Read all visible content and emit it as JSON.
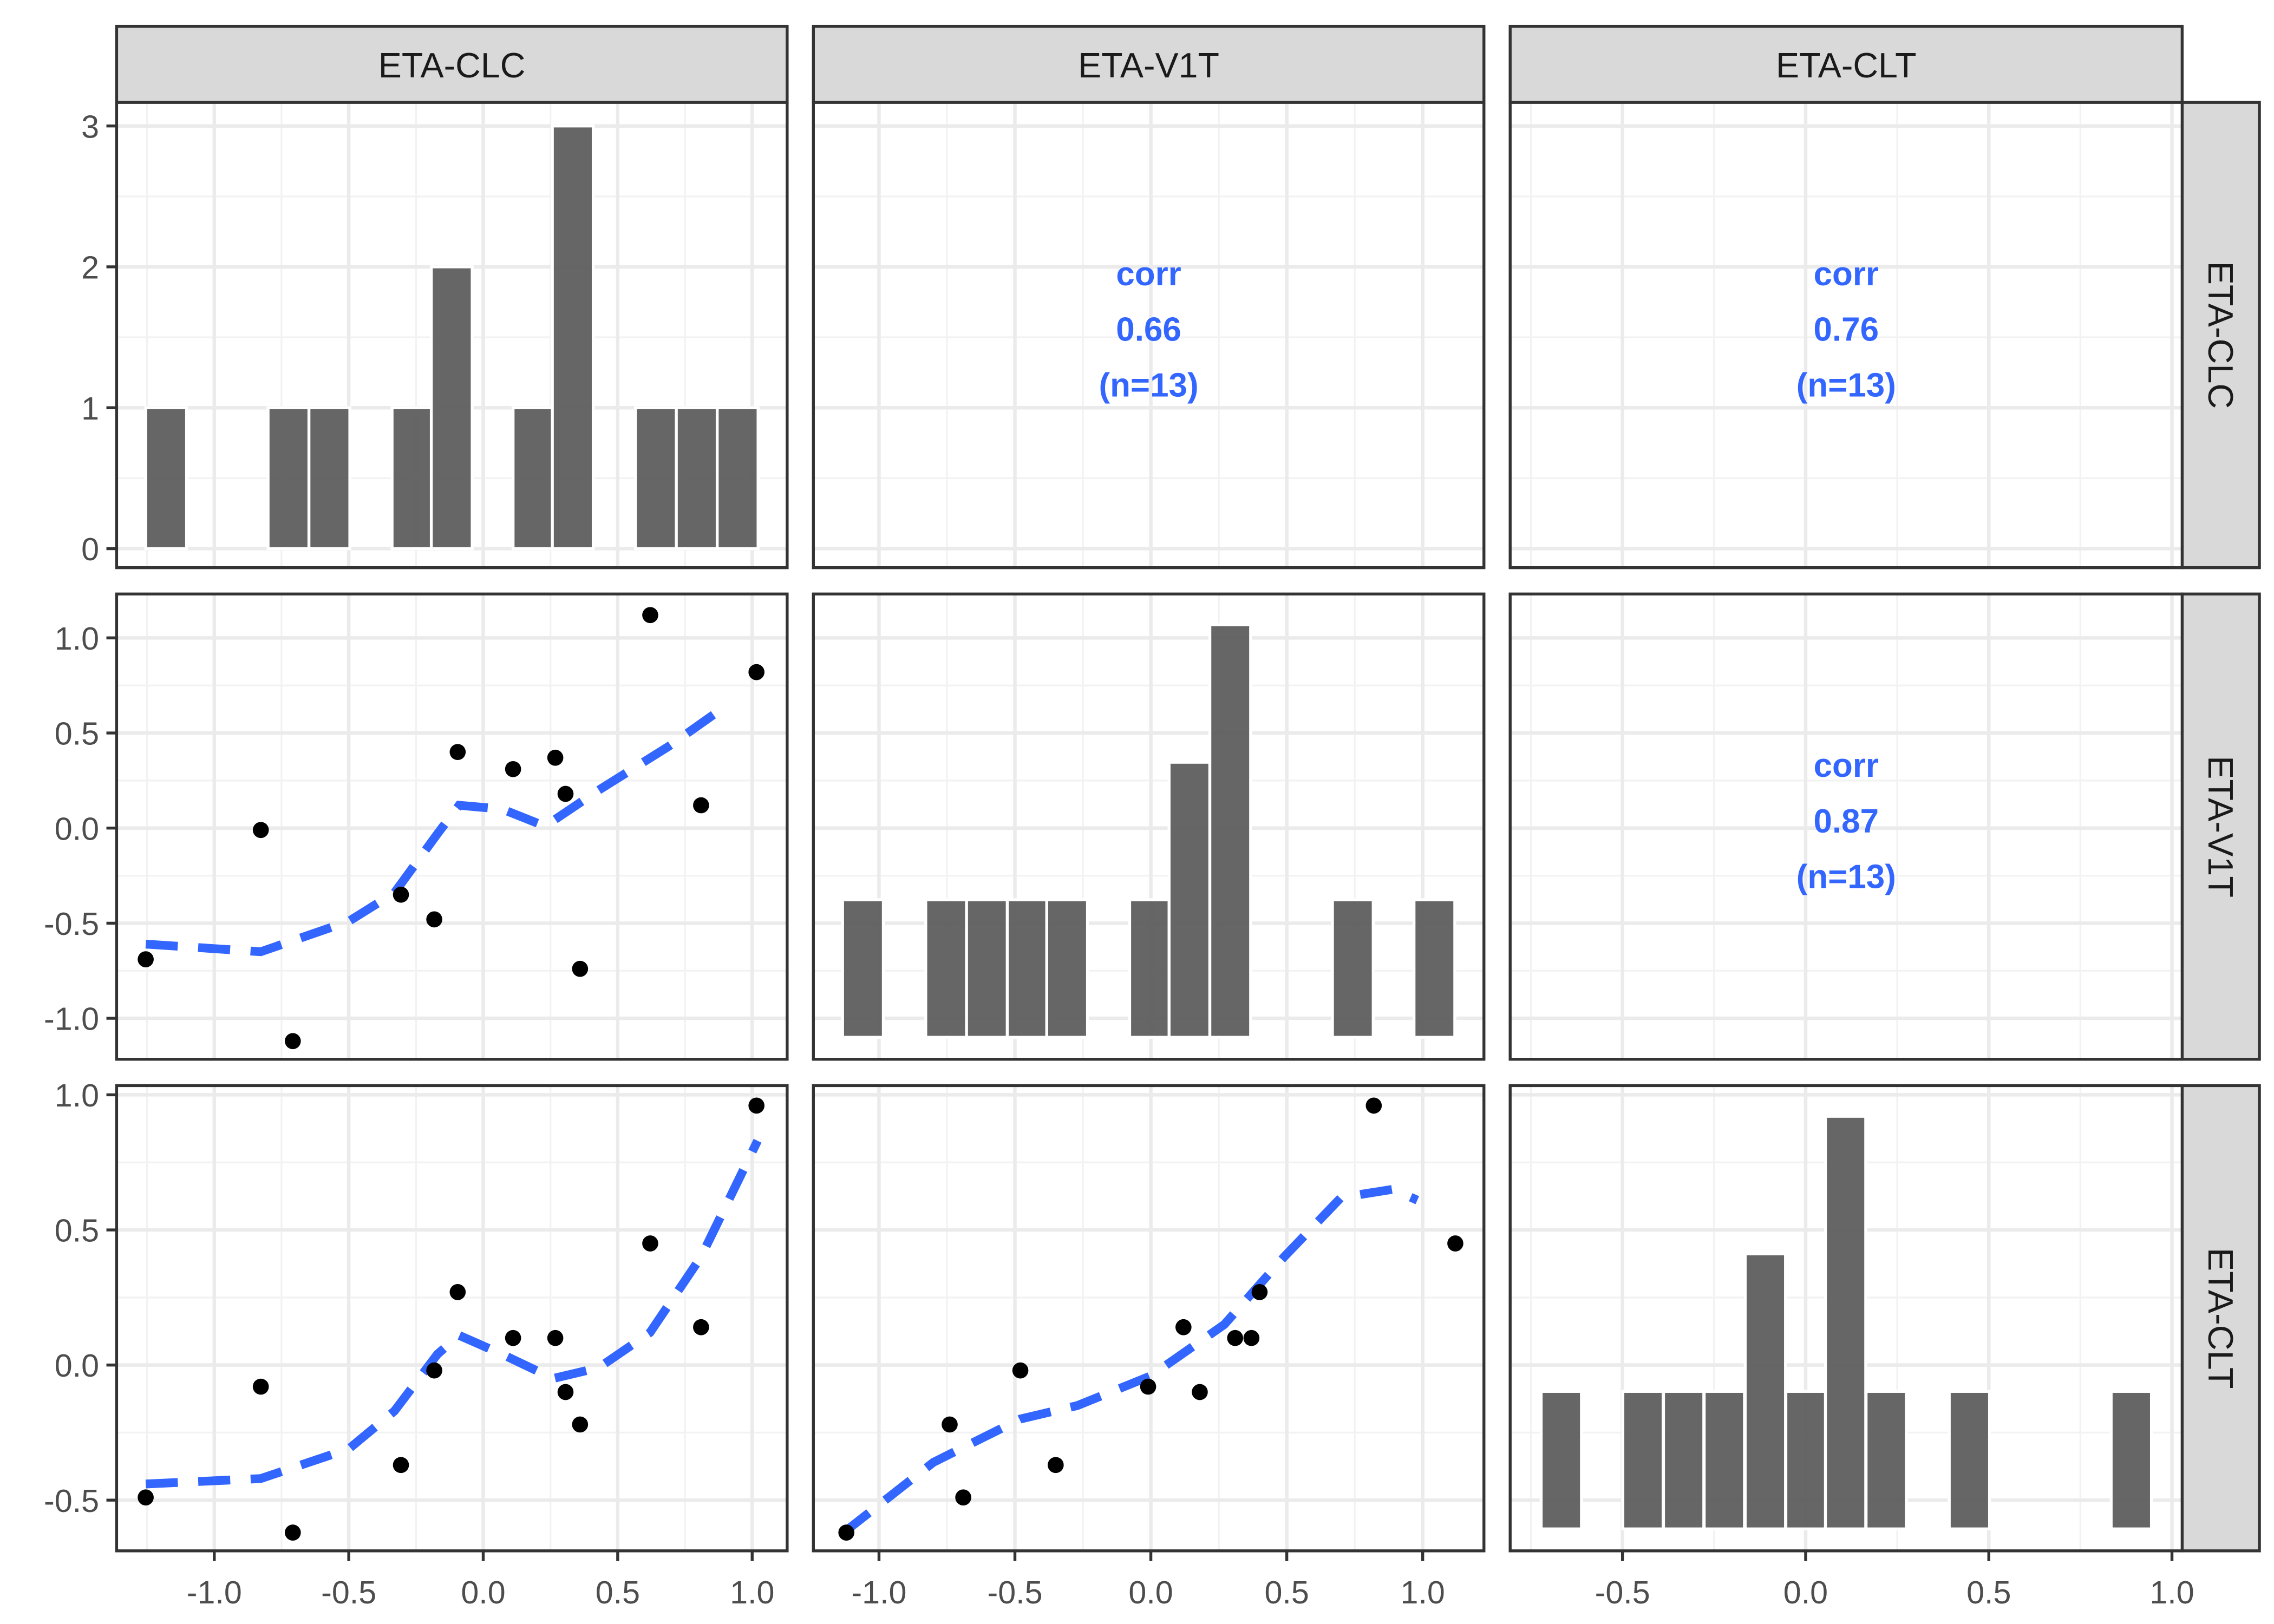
{
  "chart_data": {
    "type": "scatter-matrix",
    "variables": [
      "ETA-CLC",
      "ETA-V1T",
      "ETA-CLT"
    ],
    "x_ticks": [
      [
        "-1.0",
        "-0.5",
        "0.0",
        "0.5",
        "1.0"
      ],
      [
        "-1.0",
        "-0.5",
        "0.0",
        "0.5",
        "1.0"
      ],
      [
        "-0.5",
        "0.0",
        "0.5",
        "1.0"
      ]
    ],
    "y_ticks": [
      [
        "0",
        "1",
        "2",
        "3"
      ],
      [
        "-1.0",
        "-0.5",
        "0.0",
        "0.5",
        "1.0"
      ],
      [
        "-0.5",
        "0.0",
        "0.5",
        "1.0"
      ]
    ],
    "data": {
      "ETA-CLC": [
        -1.255,
        -0.827,
        -0.708,
        -0.306,
        -0.182,
        -0.095,
        0.111,
        0.268,
        0.306,
        0.36,
        0.621,
        0.81,
        1.016
      ],
      "ETA-V1T": [
        -0.69,
        -0.01,
        -1.12,
        -0.35,
        -0.48,
        0.4,
        0.31,
        0.37,
        0.18,
        -0.74,
        1.12,
        0.12,
        0.82
      ],
      "ETA-CLT": [
        -0.49,
        -0.08,
        -0.62,
        -0.37,
        -0.02,
        0.27,
        0.1,
        0.1,
        -0.1,
        -0.22,
        0.45,
        0.14,
        0.96
      ]
    },
    "histograms": [
      {
        "variable": "ETA-CLC",
        "bin_width": 0.152,
        "centers": [
          -1.179,
          -0.724,
          -0.572,
          -0.263,
          -0.117,
          0.187,
          0.333,
          0.642,
          0.794,
          0.946
        ],
        "counts": [
          1,
          1,
          1,
          1,
          2,
          1,
          3,
          1,
          1,
          1
        ]
      },
      {
        "variable": "ETA-V1T",
        "bin_width": 0.15,
        "centers": [
          -1.059,
          -0.753,
          -0.603,
          -0.453,
          -0.308,
          -0.003,
          0.142,
          0.292,
          0.743,
          1.043
        ],
        "counts": [
          1,
          1,
          1,
          1,
          1,
          1,
          2,
          3,
          1,
          1
        ]
      },
      {
        "variable": "ETA-CLT",
        "bin_width": 0.11,
        "centers": [
          -0.667,
          -0.444,
          -0.333,
          -0.222,
          -0.11,
          0.001,
          0.109,
          0.22,
          0.447,
          0.889
        ],
        "counts": [
          1,
          1,
          1,
          1,
          2,
          1,
          3,
          1,
          1,
          1
        ]
      }
    ],
    "smooth_lines": [
      {
        "x": "ETA-CLC",
        "y": "ETA-V1T",
        "points": [
          [
            -1.255,
            -0.61
          ],
          [
            -0.827,
            -0.65
          ],
          [
            -0.5,
            -0.49
          ],
          [
            -0.33,
            -0.34
          ],
          [
            -0.17,
            -0.03
          ],
          [
            -0.09,
            0.12
          ],
          [
            0.07,
            0.1
          ],
          [
            0.23,
            0.01
          ],
          [
            0.43,
            0.2
          ],
          [
            0.69,
            0.43
          ],
          [
            0.88,
            0.62
          ]
        ]
      },
      {
        "x": "ETA-CLC",
        "y": "ETA-CLT",
        "points": [
          [
            -1.255,
            -0.44
          ],
          [
            -0.827,
            -0.42
          ],
          [
            -0.5,
            -0.31
          ],
          [
            -0.33,
            -0.17
          ],
          [
            -0.17,
            0.04
          ],
          [
            -0.09,
            0.11
          ],
          [
            0.07,
            0.04
          ],
          [
            0.26,
            -0.05
          ],
          [
            0.43,
            -0.01
          ],
          [
            0.62,
            0.12
          ],
          [
            0.81,
            0.4
          ],
          [
            1.02,
            0.83
          ]
        ]
      },
      {
        "x": "ETA-V1T",
        "y": "ETA-CLT",
        "points": [
          [
            -1.13,
            -0.62
          ],
          [
            -0.8,
            -0.36
          ],
          [
            -0.48,
            -0.2
          ],
          [
            -0.27,
            -0.15
          ],
          [
            0.0,
            -0.04
          ],
          [
            0.27,
            0.15
          ],
          [
            0.49,
            0.4
          ],
          [
            0.7,
            0.62
          ],
          [
            0.89,
            0.65
          ],
          [
            0.98,
            0.61
          ]
        ]
      }
    ],
    "correlations": [
      {
        "x": "ETA-V1T",
        "y": "ETA-CLC",
        "label": "corr",
        "value": "0.66",
        "n": "(n=13)"
      },
      {
        "x": "ETA-CLT",
        "y": "ETA-CLC",
        "label": "corr",
        "value": "0.76",
        "n": "(n=13)"
      },
      {
        "x": "ETA-CLT",
        "y": "ETA-V1T",
        "label": "corr",
        "value": "0.87",
        "n": "(n=13)"
      }
    ],
    "colors": {
      "smooth": "#3366FF",
      "corr_text": "#3366FF",
      "bars": "#595959",
      "points": "#000000",
      "strip": "#D9D9D9"
    }
  }
}
